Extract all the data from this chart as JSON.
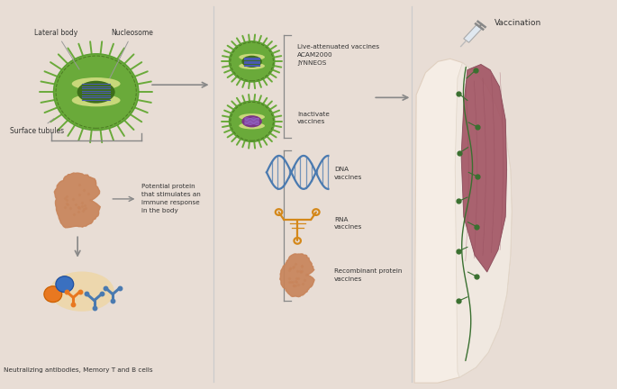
{
  "background_color": "#e8ddd5",
  "labels": {
    "lateral_body": "Lateral body",
    "nucleosome": "Nucleosome",
    "surface_tubules": "Surface tubules",
    "potential_protein": "Potential protein\nthat stimulates an\nimmune response\nin the body",
    "neutralizing": "Neutralizing antibodies, Memory T and B cells",
    "live_attenuated": "Live-attenuated vaccines\nACAM2000\nJYNNEOS",
    "inactivate": "Inactivate\nvaccines",
    "dna_vaccines": "DNA\nvaccines",
    "rna_vaccines": "RNA\nvaccines",
    "recombinant": "Recombinant protein\nvaccines",
    "vaccination": "Vaccination"
  },
  "colors": {
    "virus_outer": "#6aaa3a",
    "virus_inner": "#5a9e30",
    "virus_core": "#3d6e1a",
    "virus_nucleosome": "#c8d87a",
    "virus_dna": "#4a5ab0",
    "virus_spikes": "#6aaa3a",
    "protein_color": "#c8845a",
    "dna_color": "#4a7ab0",
    "rna_color": "#d4881a",
    "antibody_blue": "#4a7ab0",
    "antibody_orange": "#e87820",
    "cell_orange": "#e87820",
    "cell_blue": "#3a70c0",
    "arrow_color": "#888888",
    "bracket_color": "#888888",
    "text_color": "#333333",
    "separator_color": "#cccccc",
    "muscle_color": "#a05060",
    "skin_color": "#f0e0d0",
    "lymph_color": "#3a7030"
  }
}
